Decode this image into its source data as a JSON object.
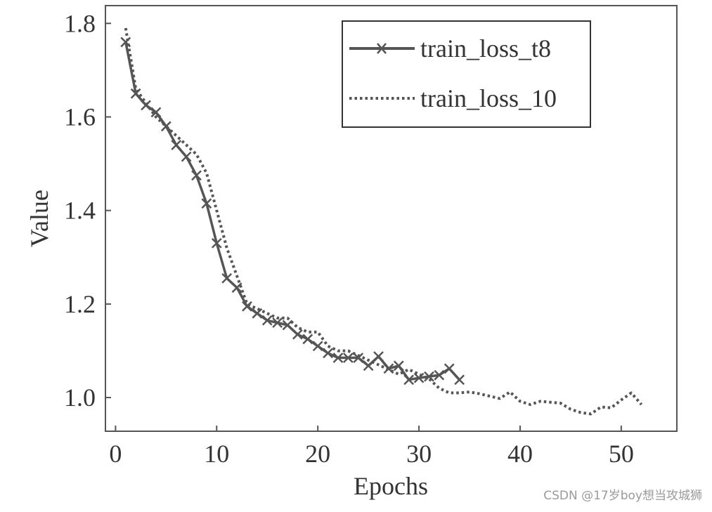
{
  "chart_data": {
    "type": "line",
    "xlabel": "Epochs",
    "ylabel": "Value",
    "xlim": [
      -1,
      55.5
    ],
    "ylim": [
      0.928,
      1.838
    ],
    "xticks": [
      0,
      10,
      20,
      30,
      40,
      50
    ],
    "yticks": [
      1.0,
      1.2,
      1.4,
      1.6,
      1.8
    ],
    "ytick_labels": [
      "1.0",
      "1.2",
      "1.4",
      "1.6",
      "1.8"
    ],
    "grid": false,
    "legend_position": "top-right",
    "series": [
      {
        "name": "train_loss_t8",
        "style": "solid",
        "marker": "x",
        "color": "#555555",
        "x": [
          1,
          2,
          3,
          4,
          5,
          6,
          7,
          8,
          9,
          10,
          11,
          12,
          13,
          14,
          15,
          16,
          17,
          18,
          19,
          20,
          21,
          22,
          23,
          24,
          25,
          26,
          27,
          28,
          29,
          30,
          31,
          32,
          33,
          34
        ],
        "y": [
          1.76,
          1.65,
          1.625,
          1.61,
          1.58,
          1.54,
          1.515,
          1.475,
          1.415,
          1.33,
          1.255,
          1.235,
          1.195,
          1.18,
          1.165,
          1.16,
          1.155,
          1.135,
          1.125,
          1.11,
          1.095,
          1.085,
          1.085,
          1.085,
          1.068,
          1.088,
          1.062,
          1.068,
          1.038,
          1.042,
          1.045,
          1.048,
          1.062,
          1.038
        ]
      },
      {
        "name": "train_loss_10",
        "style": "dotted",
        "marker": "none",
        "color": "#555555",
        "x": [
          1,
          2,
          3,
          4,
          5,
          6,
          7,
          8,
          9,
          10,
          11,
          12,
          13,
          14,
          15,
          16,
          17,
          18,
          19,
          20,
          21,
          22,
          23,
          24,
          25,
          26,
          27,
          28,
          29,
          30,
          31,
          32,
          33,
          34,
          35,
          36,
          37,
          38,
          39,
          40,
          41,
          42,
          43,
          44,
          45,
          46,
          47,
          48,
          49,
          50,
          51,
          52
        ],
        "y": [
          1.79,
          1.66,
          1.63,
          1.6,
          1.58,
          1.56,
          1.54,
          1.52,
          1.48,
          1.4,
          1.32,
          1.26,
          1.2,
          1.19,
          1.18,
          1.17,
          1.17,
          1.15,
          1.14,
          1.14,
          1.11,
          1.1,
          1.1,
          1.09,
          1.08,
          1.07,
          1.06,
          1.05,
          1.06,
          1.05,
          1.04,
          1.02,
          1.01,
          1.01,
          1.012,
          1.008,
          1.003,
          0.998,
          1.012,
          0.992,
          0.985,
          0.992,
          0.99,
          0.988,
          0.975,
          0.968,
          0.965,
          0.98,
          0.978,
          0.995,
          1.01,
          0.985
        ]
      }
    ]
  },
  "watermark": "CSDN @17岁boy想当攻城狮"
}
